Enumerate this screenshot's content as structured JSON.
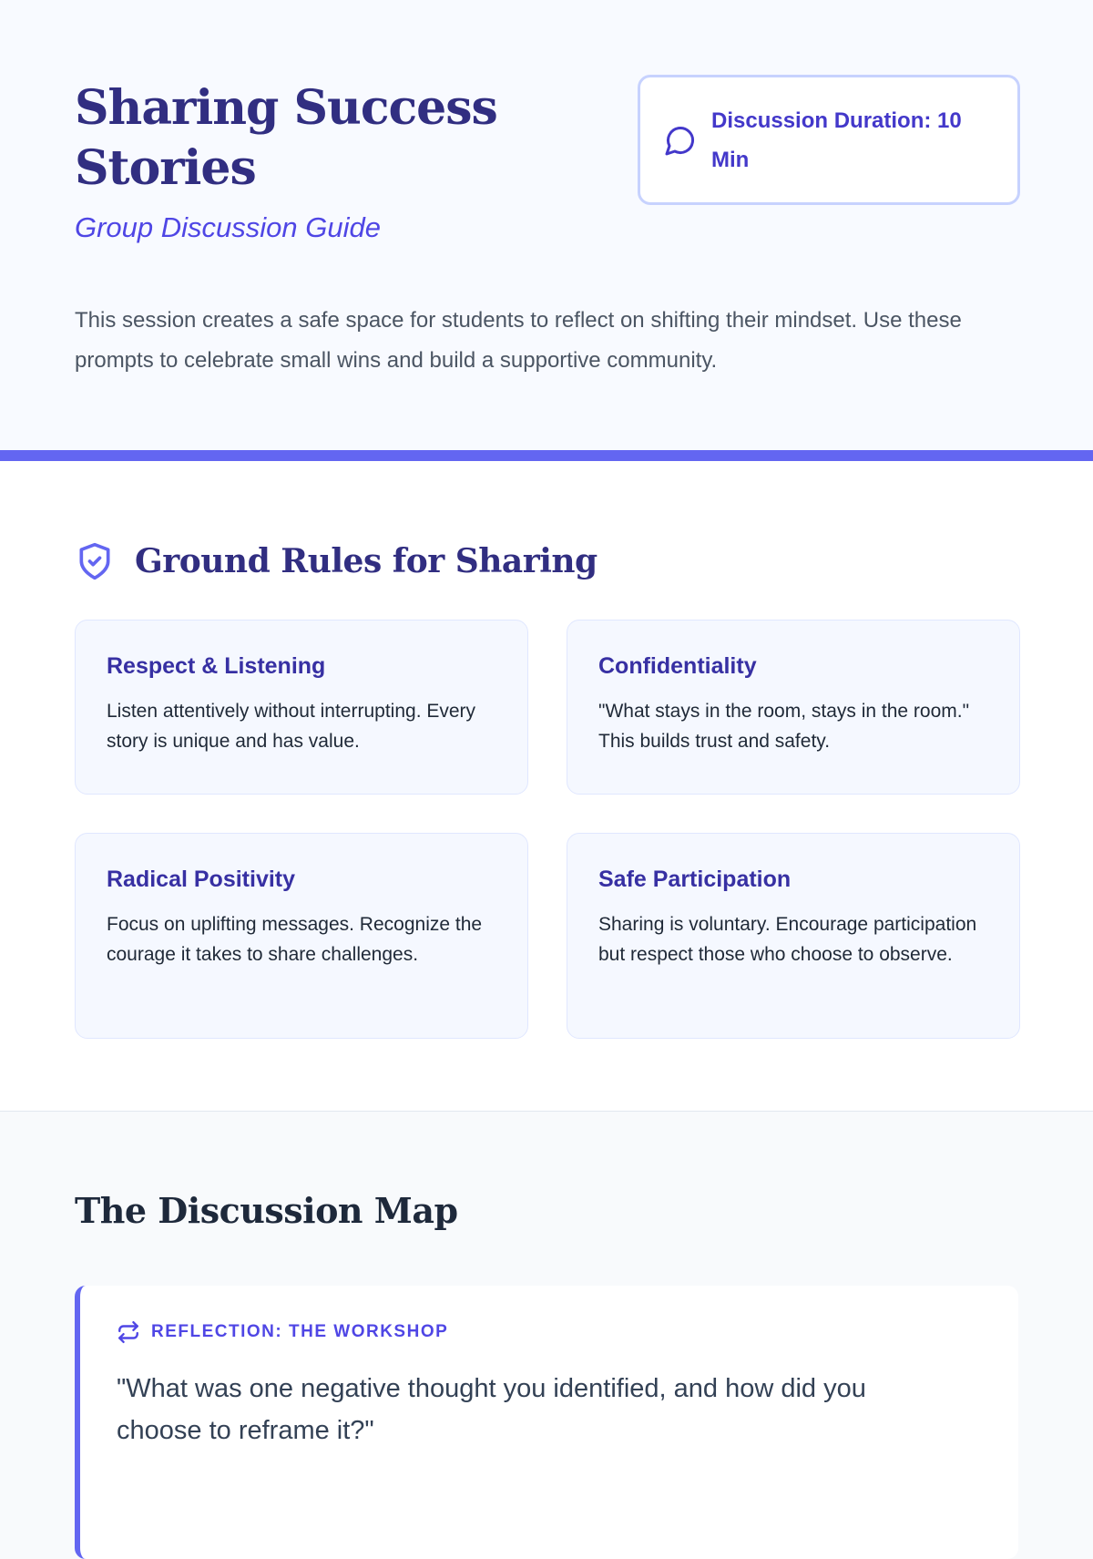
{
  "header": {
    "title": "Sharing Success Stories",
    "subtitle": "Group Discussion Guide",
    "duration": "Discussion Duration: 10 Min",
    "intro": "This session creates a safe space for students to reflect on shifting their mindset. Use these prompts to celebrate small wins and build a supportive community.",
    "accent": "#6366f1"
  },
  "rules": {
    "heading": "Ground Rules for Sharing",
    "items": [
      {
        "title": "Respect & Listening",
        "text": "Listen attentively without interrupting. Every story is unique and has value."
      },
      {
        "title": "Confidentiality",
        "text": "\"What stays in the room, stays in the room.\" This builds trust and safety."
      },
      {
        "title": "Radical Positivity",
        "text": "Focus on uplifting messages. Recognize the courage it takes to share challenges."
      },
      {
        "title": "Safe Participation",
        "text": "Sharing is voluntary. Encourage participation but respect those who choose to observe."
      }
    ]
  },
  "map": {
    "heading": "The Discussion Map",
    "cards": [
      {
        "tag": "REFLECTION: THE WORKSHOP",
        "question": "\"What was one negative thought you identified, and how did you choose to reframe it?\""
      }
    ]
  }
}
